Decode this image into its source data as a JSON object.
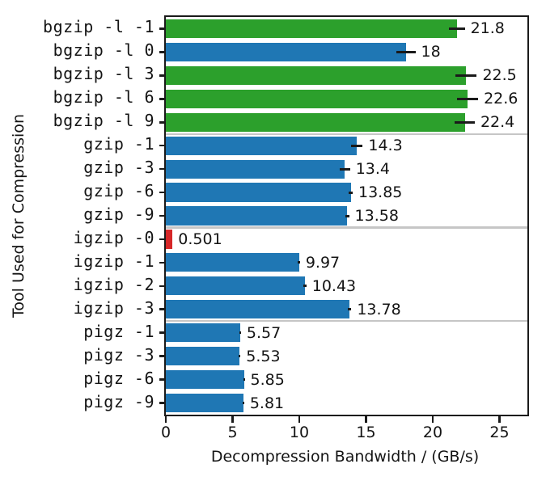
{
  "figure": {
    "background": "#ffffff"
  },
  "chart_data": {
    "type": "bar",
    "orientation": "horizontal",
    "title": "",
    "xlabel": "Decompression Bandwidth / (GB/s)",
    "ylabel": "Tool Used for Compression",
    "categories": [
      "bgzip -l -1",
      "bgzip -l 0",
      "bgzip -l 3",
      "bgzip -l 6",
      "bgzip -l 9",
      "gzip -1",
      "gzip -3",
      "gzip -6",
      "gzip -9",
      "igzip -0",
      "igzip -1",
      "igzip -2",
      "igzip -3",
      "pigz -1",
      "pigz -3",
      "pigz -6",
      "pigz -9"
    ],
    "values": [
      21.8,
      18,
      22.5,
      22.6,
      22.4,
      14.3,
      13.4,
      13.85,
      13.58,
      0.501,
      9.97,
      10.43,
      13.78,
      5.57,
      5.53,
      5.85,
      5.81
    ],
    "value_labels": [
      "21.8",
      "18",
      "22.5",
      "22.6",
      "22.4",
      "14.3",
      "13.4",
      "13.85",
      "13.58",
      "0.501",
      "9.97",
      "10.43",
      "13.78",
      "5.57",
      "5.53",
      "5.85",
      "5.81"
    ],
    "errors": [
      0.6,
      0.7,
      0.8,
      0.8,
      0.75,
      0.45,
      0.4,
      0.15,
      0.15,
      0,
      0.08,
      0.1,
      0.12,
      0.06,
      0.06,
      0.06,
      0.06
    ],
    "bar_colors": [
      "#2ca02c",
      "#1f77b4",
      "#2ca02c",
      "#2ca02c",
      "#2ca02c",
      "#1f77b4",
      "#1f77b4",
      "#1f77b4",
      "#1f77b4",
      "#d62728",
      "#1f77b4",
      "#1f77b4",
      "#1f77b4",
      "#1f77b4",
      "#1f77b4",
      "#1f77b4",
      "#1f77b4"
    ],
    "xticks": [
      0,
      5,
      10,
      15,
      20,
      25
    ],
    "xtick_labels": [
      "0",
      "5",
      "10",
      "15",
      "20",
      "25"
    ],
    "xlim": [
      0,
      27.1
    ],
    "group_separators_after": [
      4,
      8,
      12
    ],
    "grid": false,
    "legend": "none",
    "colors": {
      "blue": "#1f77b4",
      "green": "#2ca02c",
      "red": "#d62728",
      "separator": "#c6c6c6",
      "spine": "#1a1a1a",
      "error_bar": "#1a1a1a",
      "text": "#141414"
    }
  }
}
